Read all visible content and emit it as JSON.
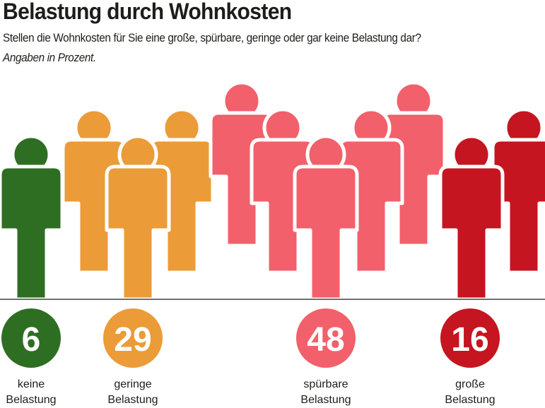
{
  "chart_data": {
    "type": "pictograph",
    "title": "Belastung durch Wohnkosten",
    "subtitle": "Stellen die Wohnkosten für Sie eine große, spürbare, geringe oder gar keine Belastung dar?",
    "note": "Angaben in Prozent.",
    "categories": [
      {
        "label_line1": "keine",
        "label_line2": "Belastung",
        "value": 6,
        "color": "#2e6e22",
        "figures": 1
      },
      {
        "label_line1": "geringe",
        "label_line2": "Belastung",
        "value": 29,
        "color": "#eb9b38",
        "figures": 3
      },
      {
        "label_line1": "spürbare",
        "label_line2": "Belastung",
        "value": 48,
        "color": "#f2606b",
        "figures": 5
      },
      {
        "label_line1": "große",
        "label_line2": "Belastung",
        "value": 16,
        "color": "#c51520",
        "figures": 2
      }
    ]
  }
}
